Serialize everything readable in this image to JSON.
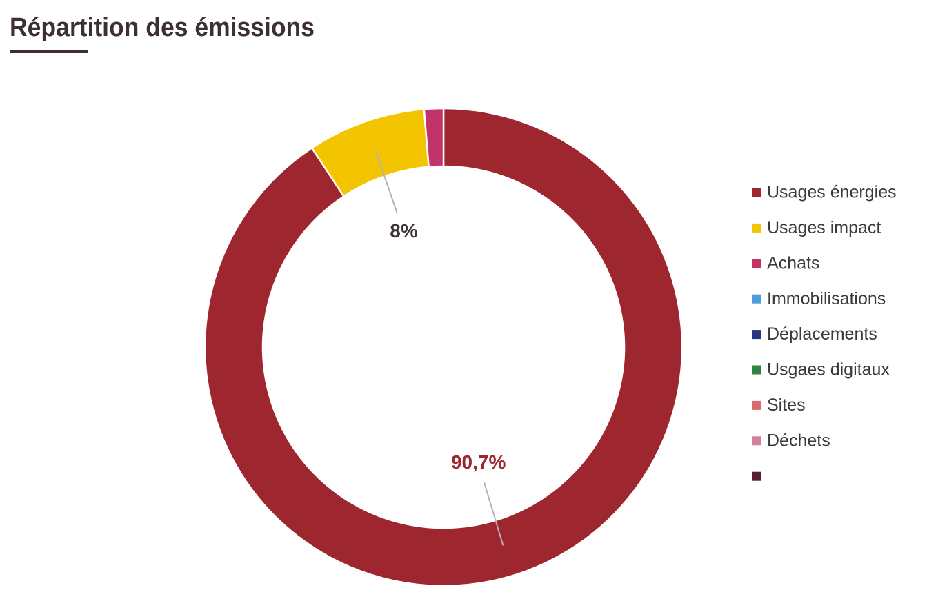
{
  "chart_data": {
    "type": "pie",
    "title": "Répartition des émissions",
    "categories": [
      "Usages énergies",
      "Usages impact",
      "Achats",
      "Immobilisations",
      "Déplacements",
      "Usgaes digitaux",
      "Sites",
      "Déchets",
      null
    ],
    "values": [
      90.7,
      8,
      1.3,
      0,
      0,
      0,
      0,
      0,
      0
    ],
    "value_labels": [
      "90,7%",
      "8%",
      null,
      null,
      null,
      null,
      null,
      null,
      null
    ],
    "colors": [
      "#9e262e",
      "#f2c500",
      "#c2336a",
      "#4a9fd8",
      "#273580",
      "#2e8540",
      "#d96b70",
      "#d27fa1",
      "#5a1c2e"
    ],
    "value_label_colors": [
      "#9e262e",
      "#3d3535",
      null,
      null,
      null,
      null,
      null,
      null,
      null
    ],
    "legend": "right"
  }
}
